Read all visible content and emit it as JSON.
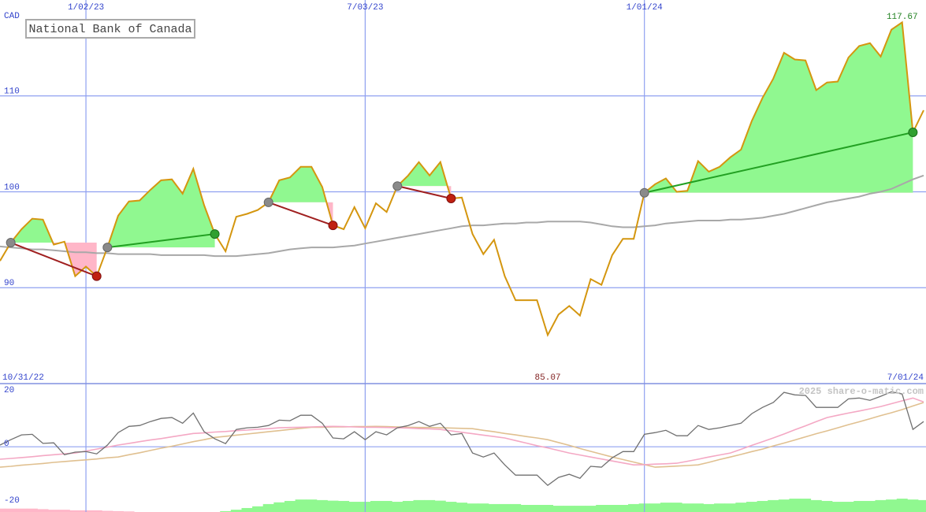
{
  "chart_data": [
    {
      "type": "line",
      "title": "National Bank of Canada",
      "y_unit": "CAD",
      "x": [
        "11/07/22",
        "11/14/22",
        "11/21/22",
        "11/28/22",
        "12/05/22",
        "12/12/22",
        "12/19/22",
        "12/26/22",
        "1/02/23",
        "1/09/23",
        "1/16/23",
        "1/23/23",
        "1/30/23",
        "2/06/23",
        "2/13/23",
        "2/20/23",
        "2/27/23",
        "3/06/23",
        "3/13/23",
        "3/20/23",
        "3/27/23",
        "4/03/23",
        "4/10/23",
        "4/17/23",
        "4/24/23",
        "5/01/23",
        "5/08/23",
        "5/15/23",
        "5/22/23",
        "5/29/23",
        "6/05/23",
        "6/12/23",
        "6/19/23",
        "6/26/23",
        "7/03/23",
        "7/10/23",
        "7/17/23",
        "7/24/23",
        "7/31/23",
        "8/07/23",
        "8/14/23",
        "8/21/23",
        "8/28/23",
        "9/04/23",
        "9/11/23",
        "9/18/23",
        "9/25/23",
        "10/02/23",
        "10/09/23",
        "10/16/23",
        "10/23/23",
        "10/30/23",
        "11/06/23",
        "11/13/23",
        "11/20/23",
        "11/27/23",
        "12/04/23",
        "12/11/23",
        "12/18/23",
        "12/25/23",
        "1/01/24",
        "1/08/24",
        "1/15/24",
        "1/22/24",
        "1/29/24",
        "2/05/24",
        "2/12/24",
        "2/19/24",
        "2/26/24",
        "3/04/24",
        "3/11/24",
        "3/18/24",
        "3/25/24",
        "4/01/24",
        "4/08/24",
        "4/15/24",
        "4/22/24",
        "4/29/24",
        "5/06/24",
        "5/13/24",
        "5/20/24",
        "5/27/24",
        "6/03/24",
        "6/10/24",
        "6/17/24",
        "6/24/24",
        "7/01/24"
      ],
      "series": [
        {
          "color": "#a8a8a8",
          "values": [
            94.3,
            94.2,
            94.1,
            94.0,
            94.0,
            93.9,
            93.8,
            93.7,
            93.7,
            93.6,
            93.6,
            93.5,
            93.5,
            93.5,
            93.5,
            93.4,
            93.4,
            93.4,
            93.4,
            93.4,
            93.3,
            93.3,
            93.3,
            93.4,
            93.5,
            93.6,
            93.8,
            94.0,
            94.1,
            94.2,
            94.2,
            94.2,
            94.3,
            94.4,
            94.6,
            94.8,
            95.0,
            95.2,
            95.4,
            95.6,
            95.8,
            96.0,
            96.2,
            96.4,
            96.5,
            96.5,
            96.6,
            96.7,
            96.7,
            96.8,
            96.8,
            96.9,
            96.9,
            96.9,
            96.9,
            96.8,
            96.6,
            96.4,
            96.3,
            96.3,
            96.4,
            96.5,
            96.7,
            96.8,
            96.9,
            97.0,
            97.0,
            97.0,
            97.1,
            97.1,
            97.2,
            97.3,
            97.5,
            97.7,
            98.0,
            98.3,
            98.6,
            98.9,
            99.1,
            99.3,
            99.5,
            99.8,
            100.0,
            100.3,
            100.8,
            101.3,
            101.7
          ]
        },
        {
          "color": "#d4960f",
          "values": [
            92.8,
            94.7,
            96.1,
            97.2,
            97.1,
            94.5,
            94.8,
            91.2,
            92.2,
            91.2,
            94.2,
            97.5,
            99.0,
            99.1,
            100.2,
            101.2,
            101.3,
            99.8,
            102.4,
            98.6,
            95.6,
            93.8,
            97.4,
            97.7,
            98.1,
            98.9,
            101.2,
            101.5,
            102.6,
            102.6,
            100.5,
            96.5,
            96.1,
            98.4,
            96.2,
            98.8,
            97.9,
            100.6,
            101.7,
            103.1,
            101.7,
            103.1,
            99.3,
            99.4,
            95.6,
            93.5,
            95.0,
            91.2,
            88.7,
            88.7,
            88.7,
            85.07,
            87.2,
            88.1,
            87.1,
            90.9,
            90.3,
            93.4,
            95.1,
            95.1,
            99.9,
            100.8,
            101.4,
            100.0,
            100.1,
            103.2,
            102.1,
            102.6,
            103.6,
            104.4,
            107.4,
            109.8,
            111.8,
            114.5,
            113.8,
            113.7,
            110.6,
            111.4,
            111.5,
            114.0,
            115.2,
            115.5,
            114.1,
            116.9,
            117.67,
            106.2,
            108.5
          ]
        }
      ],
      "trades": [
        {
          "entry_x": "11/14/22",
          "entry_price": 94.7,
          "exit_x": "1/09/23",
          "exit_price": 91.2
        },
        {
          "entry_x": "1/16/23",
          "entry_price": 94.2,
          "exit_x": "3/27/23",
          "exit_price": 95.6
        },
        {
          "entry_x": "5/01/23",
          "entry_price": 98.9,
          "exit_x": "6/12/23",
          "exit_price": 96.5
        },
        {
          "entry_x": "7/24/23",
          "entry_price": 100.6,
          "exit_x": "8/28/23",
          "exit_price": 99.3
        },
        {
          "entry_x": "1/01/24",
          "entry_price": 99.9,
          "exit_x": "6/24/24",
          "exit_price": 106.2
        }
      ],
      "gain_color": "#90f890",
      "loss_color": "#ffb6c8",
      "high": {
        "x": "6/17/24",
        "value": 117.67
      },
      "low": {
        "x": "10/30/23",
        "value": 85.07
      },
      "xlim": [
        "10/31/22",
        "7/01/24"
      ],
      "xticks": [
        "1/02/23",
        "7/03/23",
        "1/01/24"
      ],
      "ylim": [
        80,
        120
      ],
      "yticks": [
        90,
        100,
        110
      ],
      "grid": true
    },
    {
      "type": "line",
      "annotation": "2025 share-o-matic.com",
      "series": [
        {
          "color": "#e0c090",
          "values": [
            -7.2,
            -6.9,
            -6.5,
            -6.2,
            -5.9,
            -5.5,
            -5.2,
            -4.9,
            -4.6,
            -4.3,
            -3.9,
            -3.6,
            -2.8,
            -2.1,
            -1.3,
            -0.5,
            0.2,
            1.0,
            1.8,
            2.5,
            3.3,
            3.7,
            4.1,
            4.5,
            4.9,
            5.3,
            5.7,
            6.1,
            6.5,
            6.9,
            6.9,
            7.0,
            7.0,
            7.1,
            7.1,
            7.2,
            7.1,
            7.0,
            6.9,
            6.8,
            6.8,
            6.7,
            6.6,
            6.5,
            6.4,
            5.8,
            5.3,
            4.7,
            4.2,
            3.6,
            3.1,
            2.5,
            1.5,
            0.5,
            -0.6,
            -1.6,
            -2.6,
            -3.6,
            -4.5,
            -5.4,
            -6.3,
            -7.2,
            -7.0,
            -6.8,
            -6.6,
            -6.4,
            -5.5,
            -4.5,
            -3.6,
            -2.7,
            -1.7,
            -0.8,
            0.3,
            1.3,
            2.4,
            3.5,
            4.6,
            5.6,
            6.7,
            7.8,
            8.8,
            9.9,
            11.0,
            12.0,
            13.1,
            14.4,
            15.6
          ]
        },
        {
          "color": "#f4a8c4",
          "values": [
            -4.4,
            -4.1,
            -3.8,
            -3.5,
            -3.1,
            -2.8,
            -2.5,
            -2.2,
            -1.5,
            -0.8,
            -0.1,
            0.6,
            1.2,
            1.8,
            2.4,
            2.9,
            3.5,
            4.1,
            4.7,
            4.9,
            5.2,
            5.4,
            5.7,
            5.9,
            6.2,
            6.4,
            6.7,
            6.8,
            6.9,
            7.0,
            7.1,
            7.2,
            7.1,
            7.0,
            6.9,
            6.9,
            6.8,
            6.7,
            6.6,
            6.4,
            6.3,
            6.1,
            5.6,
            5.1,
            4.6,
            4.1,
            3.6,
            3.1,
            2.2,
            1.3,
            0.4,
            -0.4,
            -1.3,
            -2.2,
            -2.9,
            -3.6,
            -4.3,
            -5.0,
            -5.7,
            -6.4,
            -6.3,
            -6.1,
            -6.0,
            -5.8,
            -5.1,
            -4.4,
            -3.6,
            -2.9,
            -2.2,
            -0.9,
            0.5,
            1.8,
            3.1,
            4.5,
            6.0,
            7.4,
            8.9,
            10.3,
            11.1,
            11.9,
            12.6,
            13.4,
            14.2,
            15.2,
            16.2,
            17.2,
            15.8
          ]
        },
        {
          "color": "#707070",
          "values": [
            0.6,
            2.5,
            4.2,
            4.4,
            1.2,
            1.4,
            -2.8,
            -1.9,
            -1.7,
            -2.5,
            0.6,
            5.0,
            7.2,
            7.5,
            8.9,
            10.0,
            10.3,
            8.3,
            11.9,
            5.3,
            2.8,
            1.1,
            6.1,
            6.7,
            6.9,
            7.5,
            9.4,
            9.2,
            11.1,
            11.1,
            8.3,
            3.1,
            2.8,
            5.3,
            2.5,
            5.3,
            4.2,
            6.7,
            7.5,
            8.9,
            7.2,
            8.3,
            4.2,
            4.7,
            -2.2,
            -3.6,
            -2.2,
            -6.4,
            -10.0,
            -10.0,
            -10.0,
            -13.6,
            -10.8,
            -9.7,
            -11.1,
            -6.9,
            -7.2,
            -3.9,
            -1.7,
            -1.7,
            4.4,
            5.0,
            5.8,
            3.9,
            3.9,
            7.5,
            6.1,
            6.7,
            7.5,
            8.3,
            11.7,
            13.9,
            15.6,
            19.2,
            18.3,
            18.1,
            13.9,
            13.9,
            13.9,
            16.9,
            17.2,
            16.4,
            17.8,
            19.4,
            18.6,
            6.1,
            8.9
          ]
        }
      ],
      "bars": {
        "positive_color": "#90f890",
        "negative_color": "#ffb6c8",
        "values": [
          -1.2,
          -1.2,
          -1.2,
          -1.2,
          -1.0,
          -0.8,
          -0.8,
          -0.6,
          -0.6,
          -0.6,
          -0.4,
          -0.3,
          -0.2,
          0,
          0,
          0,
          0,
          0,
          0,
          0,
          0,
          0.3,
          0.8,
          1.4,
          2.0,
          2.8,
          3.4,
          3.9,
          4.4,
          4.4,
          4.2,
          4.0,
          3.9,
          3.6,
          3.6,
          3.9,
          3.9,
          3.6,
          3.9,
          4.2,
          4.2,
          4.0,
          3.6,
          3.3,
          3.0,
          3.0,
          2.8,
          2.8,
          2.8,
          2.5,
          2.5,
          2.5,
          2.2,
          2.2,
          2.2,
          2.2,
          2.5,
          2.5,
          2.5,
          2.8,
          3.0,
          3.0,
          3.3,
          3.3,
          3.0,
          3.0,
          2.8,
          3.0,
          3.0,
          3.3,
          3.6,
          3.9,
          4.2,
          4.4,
          4.7,
          4.7,
          4.2,
          3.9,
          3.6,
          3.6,
          3.9,
          3.9,
          4.2,
          4.4,
          4.7,
          4.4,
          4.2
        ]
      },
      "ylim": [
        -23,
        22
      ],
      "yticks": [
        -20,
        0,
        20
      ]
    }
  ]
}
